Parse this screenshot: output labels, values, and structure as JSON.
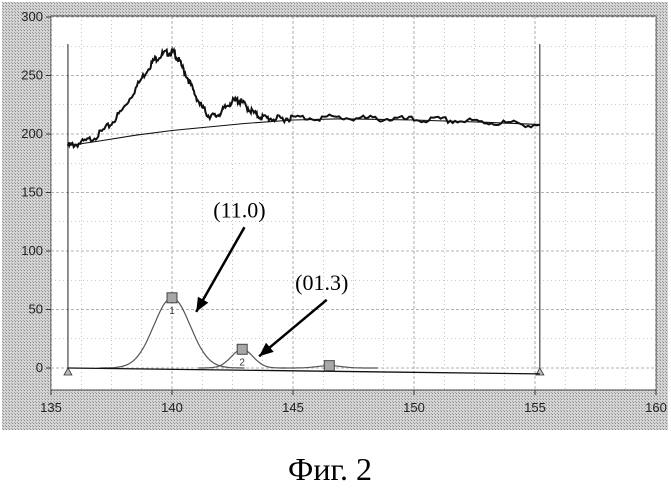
{
  "chart_data": {
    "type": "line",
    "title": "",
    "xlabel": "",
    "ylabel": "",
    "xlim": [
      135,
      160
    ],
    "ylim": [
      0,
      300
    ],
    "x_ticks": [
      135,
      140,
      145,
      150,
      155,
      160
    ],
    "y_ticks": [
      0,
      50,
      100,
      150,
      200,
      250,
      300
    ],
    "grid": true,
    "cursor_range": [
      135.7,
      155.2
    ],
    "series": [
      {
        "role": "measured",
        "x": [
          135.7,
          136.0,
          136.5,
          137.0,
          137.5,
          138.0,
          138.5,
          139.0,
          139.3,
          139.6,
          139.9,
          140.1,
          140.3,
          140.6,
          140.9,
          141.2,
          141.5,
          141.8,
          142.1,
          142.4,
          142.7,
          142.9,
          143.2,
          143.5,
          143.8,
          144.2,
          144.6,
          145.0,
          146.0,
          147.0,
          148.0,
          149.0,
          150.0,
          151.0,
          152.0,
          153.0,
          154.0,
          155.2
        ],
        "y": [
          190,
          191,
          194,
          200,
          209,
          222,
          239,
          256,
          264,
          268,
          270,
          269,
          262,
          250,
          236,
          224,
          216,
          215,
          220,
          227,
          229,
          227,
          221,
          216,
          214,
          213,
          213,
          214,
          214,
          214,
          213,
          213,
          212,
          212,
          211,
          210,
          209,
          208
        ]
      },
      {
        "role": "background",
        "x": [
          135.7,
          137.0,
          138.5,
          140.0,
          141.5,
          143.0,
          145.0,
          147.0,
          150.0,
          153.0,
          155.2
        ],
        "y": [
          190,
          194,
          199,
          203,
          206,
          209,
          212,
          213,
          212,
          210,
          208
        ]
      },
      {
        "role": "fitted-peak",
        "marker_label": "1",
        "center": 140.0,
        "height": 60,
        "sigma": 0.75
      },
      {
        "role": "fitted-peak",
        "marker_label": "2",
        "center": 142.9,
        "height": 16,
        "sigma": 0.45
      },
      {
        "role": "fitted-peak",
        "marker_label": "",
        "center": 146.5,
        "height": 2,
        "sigma": 0.5
      },
      {
        "role": "baseline",
        "x": [
          135.7,
          155.2
        ],
        "y": [
          0,
          -5
        ]
      }
    ],
    "annotations": [
      {
        "text": "(11.0)",
        "x": 143.2,
        "y": 122,
        "target_x": 141.0,
        "target_y": 48
      },
      {
        "text": "(01.3)",
        "x": 146.6,
        "y": 60,
        "target_x": 143.6,
        "target_y": 10
      }
    ]
  },
  "caption": "Фиг. 2",
  "colors": {
    "frame_fill": "#c9c9c9",
    "plot_bg": "#ffffff",
    "grid": "#9a9a9a",
    "line": "#111111",
    "peak_line": "#555555",
    "marker_fill": "#a8a8a8"
  }
}
